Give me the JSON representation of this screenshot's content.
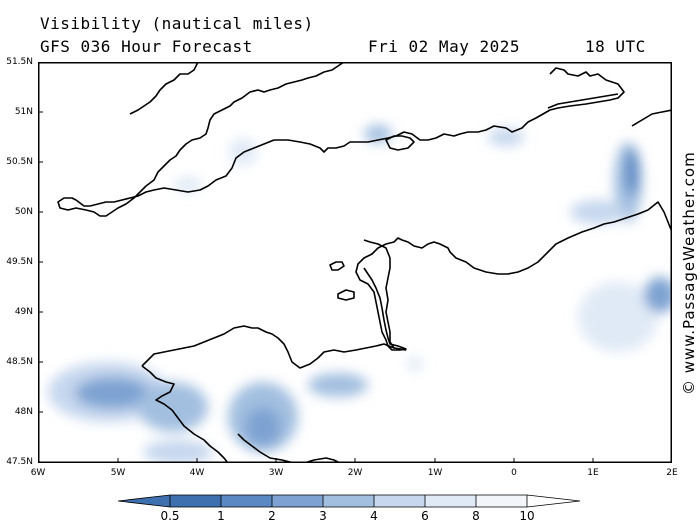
{
  "title": "Visibility (nautical miles)",
  "subtitle": "GFS 036 Hour Forecast",
  "valid_date": "Fri 02 May 2025",
  "valid_time": "18 UTC",
  "credit": "© www.PassageWeather.com",
  "latitude_labels": [
    "51.5N",
    "51N",
    "50.5N",
    "50N",
    "49.5N",
    "49N",
    "48.5N",
    "48N",
    "47.5N"
  ],
  "longitude_labels": [
    "6W",
    "5W",
    "4W",
    "3W",
    "2W",
    "1W",
    "0",
    "1E",
    "2E"
  ],
  "colorbar": {
    "labels": [
      "0.5",
      "1",
      "2",
      "3",
      "4",
      "6",
      "8",
      "10"
    ],
    "colors": [
      "#3e6fae",
      "#5a88c2",
      "#7ea3d2",
      "#a3bfe0",
      "#c6d7ee",
      "#e0eaf6",
      "#f2f6fb",
      "#ffffff"
    ]
  }
}
